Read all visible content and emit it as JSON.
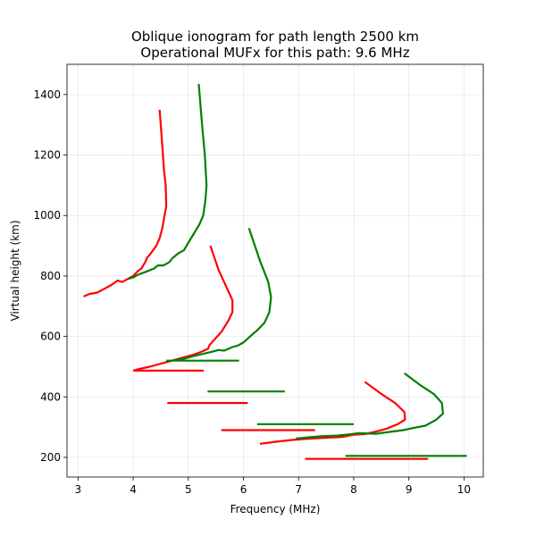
{
  "chart_data": {
    "type": "line",
    "title": "Oblique ionogram for path length 2500 km",
    "subtitle": "Operational MUFx for this path: 9.6 MHz",
    "xlabel": "Frequency (MHz)",
    "ylabel": "Virtual height (km)",
    "xlim": [
      2.8,
      10.35
    ],
    "ylim": [
      135,
      1500
    ],
    "xticks": [
      3,
      4,
      5,
      6,
      7,
      8,
      9,
      10
    ],
    "yticks": [
      200,
      400,
      600,
      800,
      1000,
      1200,
      1400
    ],
    "grid": true,
    "colors": {
      "red": "#ff0000",
      "green": "#008000"
    },
    "series": [
      {
        "color": "red",
        "points": [
          [
            4.48,
            1350
          ],
          [
            4.52,
            1250
          ],
          [
            4.56,
            1150
          ],
          [
            4.59,
            1100
          ],
          [
            4.6,
            1030
          ],
          [
            4.57,
            1000
          ],
          [
            4.53,
            960
          ],
          [
            4.48,
            925
          ],
          [
            4.42,
            900
          ],
          [
            4.3,
            870
          ],
          [
            4.25,
            860
          ],
          [
            4.23,
            850
          ],
          [
            4.2,
            840
          ],
          [
            4.15,
            825
          ],
          [
            4.08,
            815
          ],
          [
            4.0,
            800
          ],
          [
            3.9,
            790
          ],
          [
            3.8,
            780
          ],
          [
            3.72,
            785
          ],
          [
            3.6,
            770
          ],
          [
            3.45,
            755
          ],
          [
            3.35,
            745
          ],
          [
            3.2,
            740
          ],
          [
            3.1,
            732
          ]
        ]
      },
      {
        "color": "green",
        "points": [
          [
            5.19,
            1435
          ],
          [
            5.25,
            1300
          ],
          [
            5.3,
            1200
          ],
          [
            5.33,
            1100
          ],
          [
            5.31,
            1050
          ],
          [
            5.27,
            1000
          ],
          [
            5.2,
            970
          ],
          [
            5.1,
            940
          ],
          [
            5.0,
            910
          ],
          [
            4.92,
            885
          ],
          [
            4.82,
            875
          ],
          [
            4.72,
            860
          ],
          [
            4.65,
            845
          ],
          [
            4.55,
            835
          ],
          [
            4.45,
            835
          ],
          [
            4.38,
            825
          ],
          [
            4.25,
            815
          ],
          [
            4.1,
            805
          ],
          [
            4.0,
            795
          ],
          [
            3.9,
            790
          ]
        ]
      },
      {
        "color": "red",
        "points": [
          [
            5.4,
            900
          ],
          [
            5.55,
            820
          ],
          [
            5.7,
            760
          ],
          [
            5.8,
            720
          ],
          [
            5.8,
            680
          ],
          [
            5.72,
            650
          ],
          [
            5.6,
            615
          ],
          [
            5.45,
            585
          ],
          [
            5.38,
            570
          ],
          [
            5.36,
            560
          ],
          [
            5.25,
            550
          ],
          [
            5.1,
            540
          ],
          [
            4.9,
            530
          ],
          [
            4.6,
            515
          ],
          [
            4.3,
            500
          ],
          [
            4.1,
            492
          ],
          [
            4.0,
            487
          ]
        ]
      },
      {
        "color": "green",
        "points": [
          [
            6.1,
            958
          ],
          [
            6.3,
            850
          ],
          [
            6.45,
            780
          ],
          [
            6.5,
            730
          ],
          [
            6.47,
            680
          ],
          [
            6.38,
            645
          ],
          [
            6.25,
            620
          ],
          [
            6.15,
            605
          ],
          [
            6.0,
            580
          ],
          [
            5.9,
            570
          ],
          [
            5.8,
            565
          ],
          [
            5.65,
            553
          ],
          [
            5.55,
            555
          ],
          [
            5.4,
            548
          ],
          [
            5.1,
            535
          ],
          [
            4.9,
            525
          ],
          [
            4.7,
            520
          ]
        ]
      },
      {
        "color": "red",
        "points": [
          [
            8.2,
            450
          ],
          [
            8.5,
            410
          ],
          [
            8.75,
            380
          ],
          [
            8.92,
            350
          ],
          [
            8.93,
            325
          ],
          [
            8.8,
            310
          ],
          [
            8.6,
            295
          ],
          [
            8.4,
            285
          ],
          [
            8.2,
            277
          ],
          [
            8.0,
            275
          ],
          [
            7.8,
            268
          ],
          [
            7.5,
            265
          ],
          [
            7.2,
            262
          ],
          [
            6.9,
            258
          ],
          [
            6.6,
            252
          ],
          [
            6.3,
            245
          ]
        ]
      },
      {
        "color": "green",
        "points": [
          [
            8.92,
            478
          ],
          [
            9.2,
            440
          ],
          [
            9.45,
            410
          ],
          [
            9.6,
            380
          ],
          [
            9.62,
            345
          ],
          [
            9.5,
            325
          ],
          [
            9.3,
            305
          ],
          [
            9.1,
            298
          ],
          [
            8.9,
            290
          ],
          [
            8.6,
            283
          ],
          [
            8.4,
            278
          ],
          [
            8.1,
            280
          ],
          [
            7.9,
            276
          ],
          [
            7.7,
            272
          ],
          [
            7.4,
            270
          ],
          [
            7.1,
            265
          ],
          [
            6.95,
            262
          ]
        ]
      },
      {
        "color": "red",
        "points": [
          [
            4.0,
            487
          ],
          [
            5.28,
            487
          ]
        ]
      },
      {
        "color": "green",
        "points": [
          [
            4.6,
            520
          ],
          [
            5.92,
            520
          ]
        ]
      },
      {
        "color": "green",
        "points": [
          [
            5.35,
            418
          ],
          [
            6.75,
            418
          ]
        ]
      },
      {
        "color": "red",
        "points": [
          [
            4.62,
            380
          ],
          [
            6.08,
            380
          ]
        ]
      },
      {
        "color": "green",
        "points": [
          [
            6.25,
            310
          ],
          [
            8.0,
            310
          ]
        ]
      },
      {
        "color": "red",
        "points": [
          [
            5.6,
            290
          ],
          [
            7.3,
            290
          ]
        ]
      },
      {
        "color": "green",
        "points": [
          [
            7.85,
            205
          ],
          [
            10.05,
            205
          ]
        ]
      },
      {
        "color": "red",
        "points": [
          [
            7.12,
            195
          ],
          [
            9.35,
            195
          ]
        ]
      }
    ]
  }
}
